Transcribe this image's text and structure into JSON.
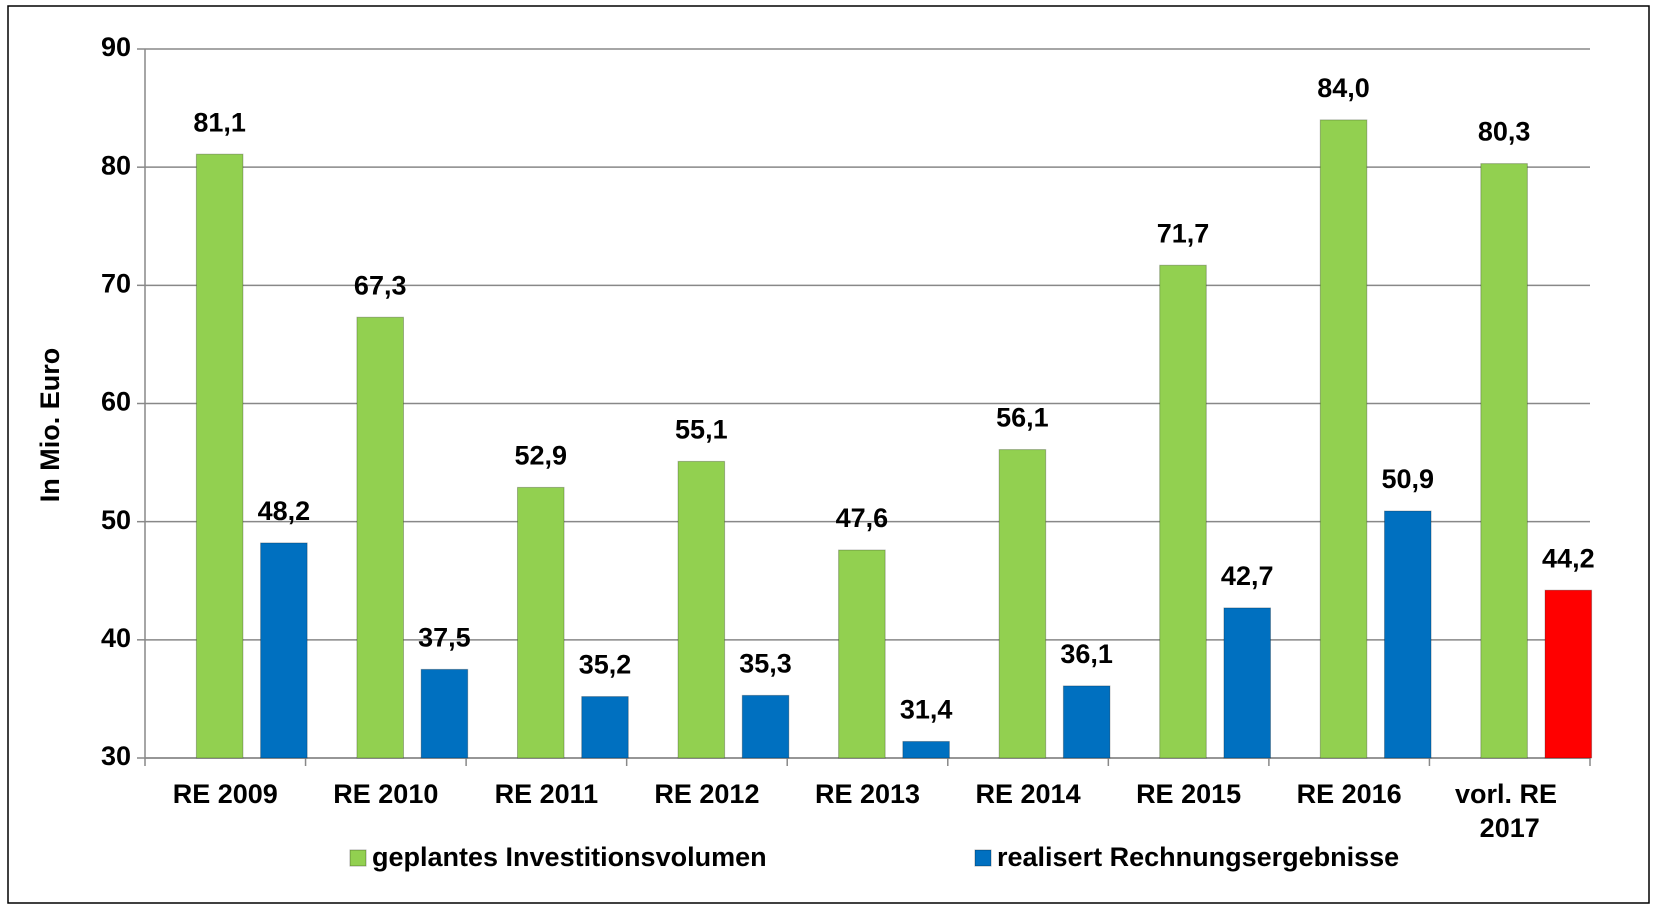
{
  "chart_data": {
    "type": "bar",
    "y_label": "In Mio. Euro",
    "categories": [
      "RE 2009",
      "RE 2010",
      "RE 2011",
      "RE 2012",
      "RE 2013",
      "RE 2014",
      "RE 2015",
      "RE 2016",
      "vorl. RE 2017"
    ],
    "series": [
      {
        "name": "geplantes Investitionsvolumen",
        "color": "#92d050",
        "values": [
          81.1,
          67.3,
          52.9,
          55.1,
          47.6,
          56.1,
          71.7,
          84.0,
          80.3
        ],
        "value_labels": [
          "81,1",
          "67,3",
          "52,9",
          "55,1",
          "47,6",
          "56,1",
          "71,7",
          "84,0",
          "80,3"
        ]
      },
      {
        "name": "realisert Rechnungsergebnisse",
        "color": "#0070c0",
        "colors": [
          "#0070c0",
          "#0070c0",
          "#0070c0",
          "#0070c0",
          "#0070c0",
          "#0070c0",
          "#0070c0",
          "#0070c0",
          "#ff0000"
        ],
        "values": [
          48.2,
          37.5,
          35.2,
          35.3,
          31.4,
          36.1,
          42.7,
          50.9,
          44.2
        ],
        "value_labels": [
          "48,2",
          "37,5",
          "35,2",
          "35,3",
          "31,4",
          "36,1",
          "42,7",
          "50,9",
          "44,2"
        ]
      }
    ],
    "ylim": [
      30,
      90
    ],
    "yticks": [
      30,
      40,
      50,
      60,
      70,
      80,
      90
    ],
    "grid": true,
    "legend": "bottom"
  }
}
